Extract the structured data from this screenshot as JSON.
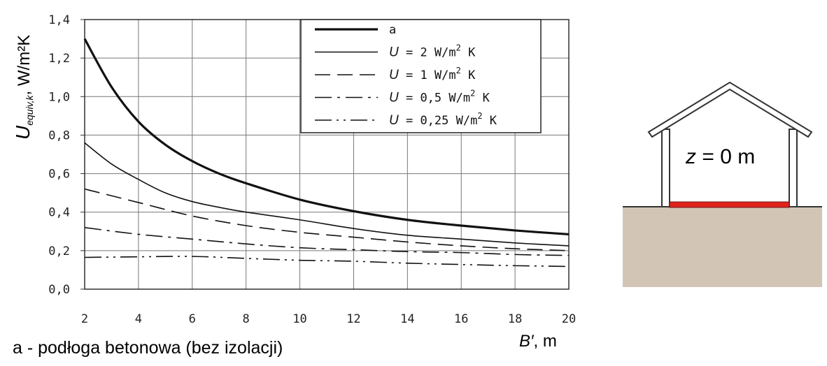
{
  "chart_data": {
    "type": "line",
    "ylabel_main": "U",
    "ylabel_sub": "equiv,k",
    "ylabel_unit": ", W/m²K",
    "xlabel_main": "B′",
    "xlabel_unit": ", m",
    "xlim": [
      2,
      20
    ],
    "ylim": [
      0,
      1.4
    ],
    "xticks": [
      2,
      4,
      6,
      8,
      10,
      12,
      14,
      16,
      18,
      20
    ],
    "yticks": [
      "0,0",
      "0,2",
      "0,4",
      "0,6",
      "0,8",
      "1,0",
      "1,2",
      "1,4"
    ],
    "grid": true,
    "legend_position": "top-right",
    "series": [
      {
        "name": "a",
        "style": "thick",
        "x": [
          2,
          3,
          4,
          5,
          6,
          7,
          8,
          10,
          12,
          14,
          16,
          18,
          20
        ],
        "y": [
          1.3,
          1.05,
          0.87,
          0.75,
          0.665,
          0.6,
          0.55,
          0.465,
          0.405,
          0.36,
          0.33,
          0.305,
          0.285
        ]
      },
      {
        "name": "U = 2 W/m² K",
        "style": "solid",
        "x": [
          2,
          3,
          4,
          5,
          6,
          7,
          8,
          10,
          12,
          14,
          16,
          18,
          20
        ],
        "y": [
          0.76,
          0.65,
          0.57,
          0.5,
          0.455,
          0.425,
          0.4,
          0.36,
          0.315,
          0.28,
          0.26,
          0.24,
          0.225
        ]
      },
      {
        "name": "U = 1 W/m² K",
        "style": "dash",
        "x": [
          2,
          4,
          6,
          8,
          10,
          12,
          14,
          16,
          18,
          20
        ],
        "y": [
          0.52,
          0.45,
          0.38,
          0.33,
          0.295,
          0.27,
          0.245,
          0.225,
          0.21,
          0.2
        ]
      },
      {
        "name": "U = 0,5 W/m² K",
        "style": "dashdot",
        "x": [
          2,
          4,
          6,
          8,
          10,
          12,
          14,
          16,
          18,
          20
        ],
        "y": [
          0.32,
          0.285,
          0.26,
          0.235,
          0.215,
          0.205,
          0.195,
          0.19,
          0.18,
          0.175
        ]
      },
      {
        "name": "U = 0,25 W/m² K",
        "style": "dashdotdot",
        "x": [
          2,
          4,
          6,
          8,
          10,
          12,
          14,
          16,
          18,
          20
        ],
        "y": [
          0.165,
          0.168,
          0.17,
          0.16,
          0.15,
          0.145,
          0.135,
          0.128,
          0.122,
          0.118
        ]
      }
    ],
    "legend": [
      {
        "prefix": "",
        "text": "a"
      },
      {
        "prefix": "U",
        "text": " = 2 W/m",
        "sup": "2",
        "unit": " K"
      },
      {
        "prefix": "U",
        "text": " = 1 W/m",
        "sup": "2",
        "unit": " K"
      },
      {
        "prefix": "U",
        "text": " = 0,5 W/m",
        "sup": "2",
        "unit": " K"
      },
      {
        "prefix": "U",
        "text": " = 0,25 W/m",
        "sup": "2",
        "unit": " K"
      }
    ]
  },
  "footnote": "a - podłoga betonowa (bez izolacji)",
  "house": {
    "label_var": "z",
    "label_rest": " = 0 m",
    "colors": {
      "ground": "#d2c5b6",
      "floor": "#e0231b",
      "outline": "#333333",
      "fill": "#ffffff"
    }
  }
}
